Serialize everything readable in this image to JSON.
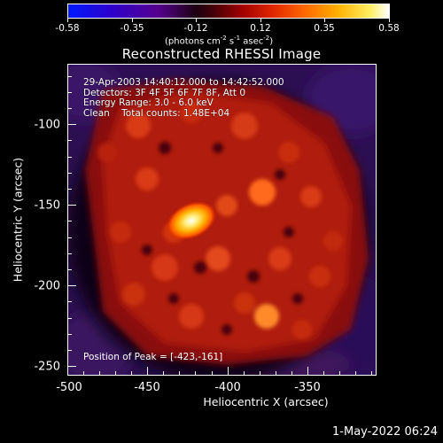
{
  "colorbar": {
    "tick_labels": [
      "-0.58",
      "-0.35",
      "-0.12",
      "0.12",
      "0.35",
      "0.58"
    ],
    "tick_values": [
      -0.58,
      -0.35,
      -0.12,
      0.12,
      0.35,
      0.58
    ],
    "units_main": "(photons cm",
    "units_sup1": "-2",
    "units_mid1": " s",
    "units_sup2": "-1",
    "units_mid2": " asec",
    "units_sup3": "-2",
    "units_end": ")",
    "colors": [
      "#0019ff",
      "#56008e",
      "#1c0010",
      "#a00000",
      "#ff6a00",
      "#ffee60",
      "#ffffff"
    ]
  },
  "plot": {
    "title": "Reconstructed RHESSI Image",
    "info_lines": [
      "29-Apr-2003 14:40:12.000 to 14:42:52.000",
      "Detectors: 3F 4F 5F 6F 7F 8F, Att 0",
      "Energy Range: 3.0 - 6.0 keV",
      "Clean    Total counts: 1.48E+04"
    ],
    "peak_text": "Position of Peak = [-423,-161]",
    "x_axis_title": "Heliocentric X (arcsec)",
    "y_axis_title": "Heliocentric Y (arcsec)",
    "x_ticks": [
      "-500",
      "-450",
      "-400",
      "-350"
    ],
    "y_ticks": [
      "-100",
      "-150",
      "-200",
      "-250"
    ]
  },
  "footer": {
    "datestamp": "1-May-2022 06:24"
  },
  "chart_data": {
    "type": "heatmap",
    "title": "Reconstructed RHESSI Image",
    "xlabel": "Heliocentric X (arcsec)",
    "ylabel": "Heliocentric Y (arcsec)",
    "xlim": [
      -505,
      -408
    ],
    "ylim": [
      -256,
      -76
    ],
    "peak": {
      "x": -423,
      "y": -161
    },
    "value_range": [
      -0.58,
      0.58
    ],
    "colorbar_label": "(photons cm-2 s-1 asec-2)"
  }
}
